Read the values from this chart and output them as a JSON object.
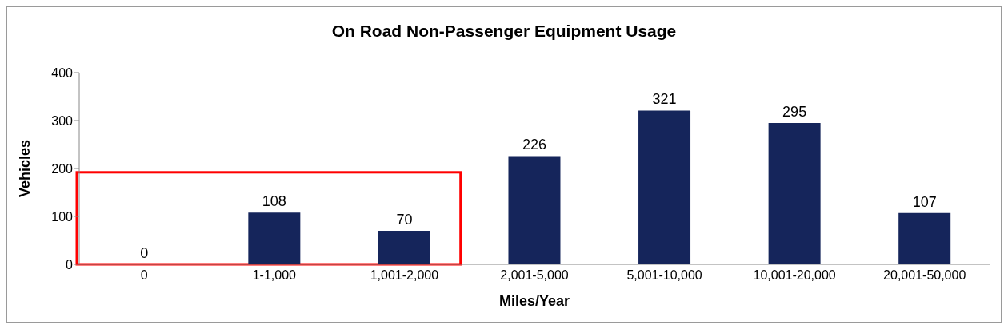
{
  "chart_data": {
    "type": "bar",
    "title": "On Road Non-Passenger Equipment Usage",
    "xlabel": "Miles/Year",
    "ylabel": "Vehicles",
    "categories": [
      "0",
      "1-1,000",
      "1,001-2,000",
      "2,001-5,000",
      "5,001-10,000",
      "10,001-20,000",
      "20,001-50,000"
    ],
    "values": [
      0,
      108,
      70,
      226,
      321,
      295,
      107
    ],
    "color": "#15255b",
    "ylim": [
      0,
      400
    ],
    "yticks": [
      0,
      100,
      200,
      300,
      400
    ],
    "grid": false,
    "data_labels": true
  }
}
